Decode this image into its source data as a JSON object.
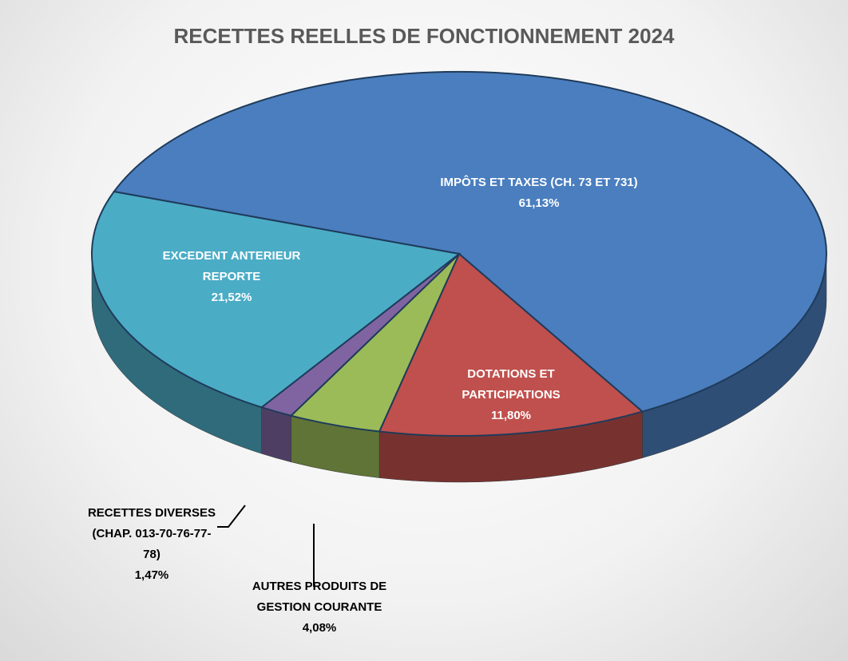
{
  "chart_data": {
    "type": "pie",
    "title": "RECETTES REELLES DE FONCTIONNEMENT 2024",
    "categories": [
      "IMPÔTS ET TAXES (CH. 73 ET 731)",
      "DOTATIONS ET PARTICIPATIONS",
      "AUTRES PRODUITS DE GESTION COURANTE",
      "RECETTES DIVERSES (CHAP. 013-70-76-77-78)",
      "EXCEDENT ANTERIEUR REPORTE"
    ],
    "values": [
      61.13,
      11.8,
      4.08,
      1.47,
      21.52
    ],
    "value_labels": [
      "61,13%",
      "11,80%",
      "4,08%",
      "1,47%",
      "21,52%"
    ],
    "colors": [
      "#4a7ebf",
      "#c0504d",
      "#9bbb59",
      "#8064a2",
      "#4bacc6"
    ]
  }
}
